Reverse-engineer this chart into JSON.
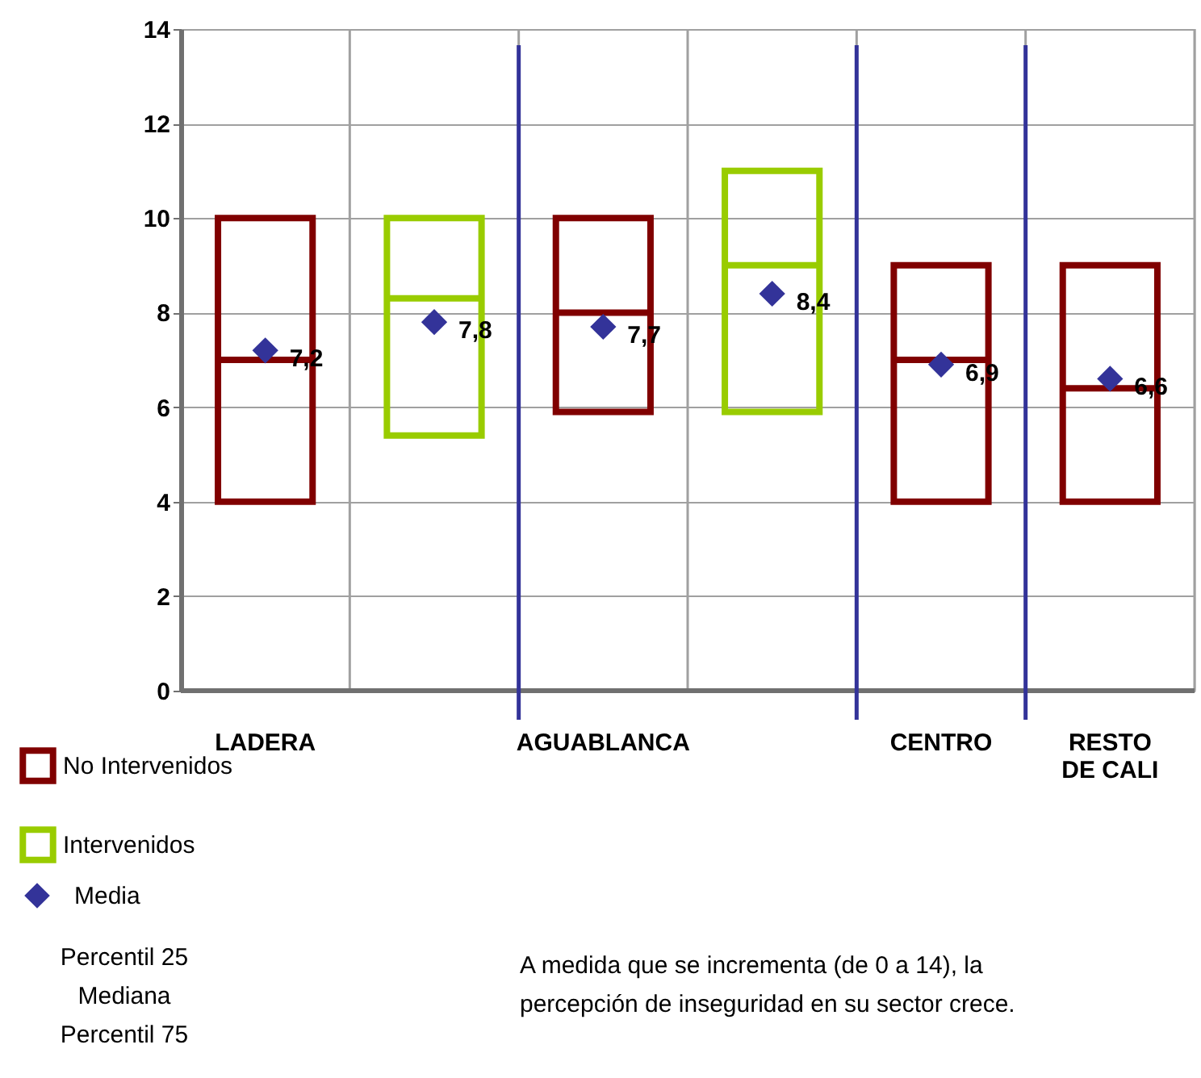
{
  "chart_data": {
    "type": "box",
    "categories": [
      "LADERA",
      null,
      "AGUABLANCA",
      null,
      "CENTRO",
      "RESTO DE CALI"
    ],
    "series": [
      {
        "name": "No Intervenidos",
        "color": "#800000",
        "boxes": [
          {
            "low": 4,
            "q1": 4,
            "median": 7,
            "q3": 10,
            "high": 10
          },
          null,
          {
            "low": 5.9,
            "q1": 5.9,
            "median": 8,
            "q3": 10,
            "high": 10
          },
          null,
          {
            "low": 4,
            "q1": 4,
            "median": 7,
            "q3": 9,
            "high": 9
          },
          {
            "low": 4,
            "q1": 4,
            "median": 6.4,
            "q3": 9,
            "high": 9
          }
        ]
      },
      {
        "name": "Intervenidos",
        "color": "#99cc00",
        "boxes": [
          null,
          {
            "low": 5.4,
            "q1": 5.4,
            "median": 8.3,
            "q3": 10,
            "high": 10
          },
          null,
          {
            "low": 5.9,
            "q1": 5.9,
            "median": 9,
            "q3": 11,
            "high": 11
          },
          null,
          null
        ]
      },
      {
        "name": "Media",
        "type": "scatter",
        "color": "#333399",
        "marker": "diamond",
        "values": [
          7.2,
          7.8,
          7.7,
          8.4,
          6.9,
          6.6
        ],
        "value_labels": [
          "7,2",
          "7,8",
          "7,7",
          "8,4",
          "6,9",
          "6,6"
        ]
      }
    ],
    "ylim": [
      0,
      14
    ],
    "yticks": [
      0,
      2,
      4,
      6,
      8,
      10,
      12,
      14
    ],
    "grid": true,
    "legend": "bottom left",
    "annotations": [
      "Percentil 25",
      "Mediana",
      "Percentil 75",
      "A medida que se incrementa (de 0 a 14), la percepción de inseguridad en su sector crece."
    ]
  }
}
